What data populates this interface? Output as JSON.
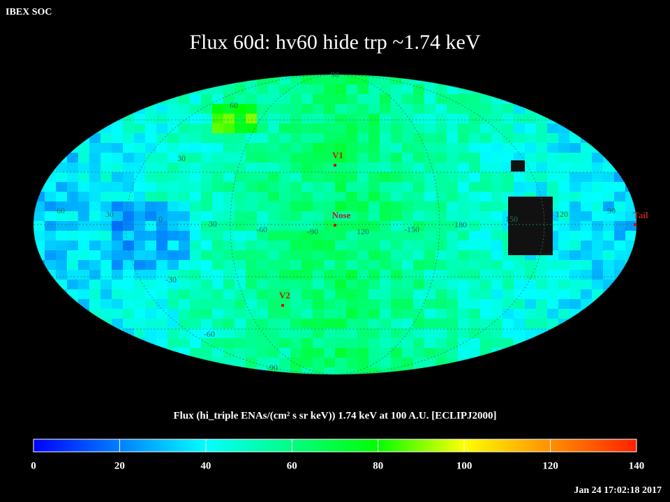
{
  "header": {
    "source": "IBEX SOC",
    "title": "Flux   60d: hv60 hide trp ~1.74 keV"
  },
  "map": {
    "grid_labels": [
      "90",
      "60",
      "30",
      "60",
      "30",
      "0",
      "30",
      "-60",
      "-90",
      "120",
      "-150",
      "180",
      "150",
      "120",
      "90",
      "-30",
      "-60",
      "-90"
    ],
    "markers": [
      "V1",
      "Nose",
      "V2",
      "Tail"
    ]
  },
  "colorbar": {
    "caption": "Flux (hi_triple ENAs/(cm² s sr keV))  1.74 keV at 100 A.U. [ECLIPJ2000]",
    "ticks": [
      0,
      20,
      40,
      60,
      80,
      100,
      120,
      140
    ]
  },
  "footer": {
    "timestamp": "Jan 24 17:02:18 2017"
  }
}
